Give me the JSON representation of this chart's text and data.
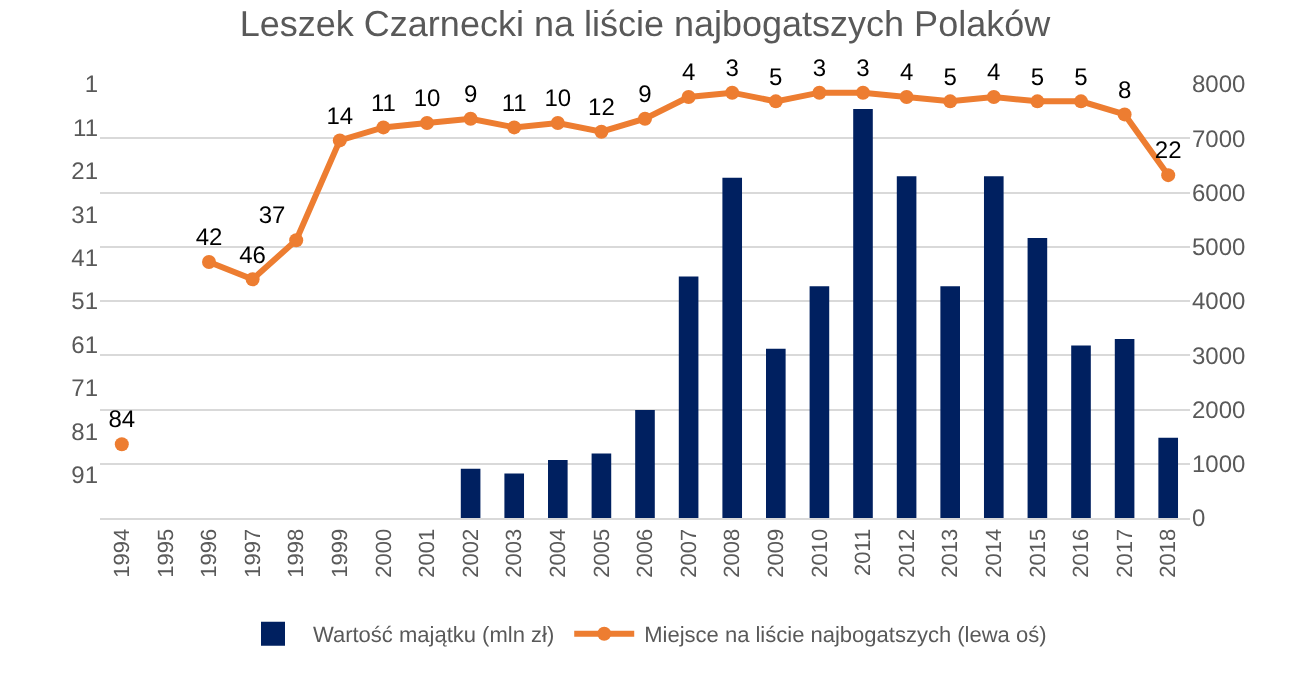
{
  "chart_data": {
    "type": "bar",
    "title": "Leszek Czarnecki na liście najbogatszych Polaków",
    "categories": [
      "1994",
      "1995",
      "1996",
      "1997",
      "1998",
      "1999",
      "2000",
      "2001",
      "2002",
      "2003",
      "2004",
      "2005",
      "2006",
      "2007",
      "2008",
      "2009",
      "2010",
      "2011",
      "2012",
      "2013",
      "2014",
      "2015",
      "2016",
      "2017",
      "2018"
    ],
    "series": [
      {
        "name": "Wartość majątku (mln zł)",
        "axis": "y2",
        "color": "#002060",
        "values": [
          null,
          null,
          null,
          null,
          null,
          null,
          null,
          null,
          910,
          820,
          1070,
          1190,
          1990,
          4450,
          6270,
          3120,
          4270,
          7540,
          6300,
          4270,
          6300,
          5160,
          3180,
          3300,
          1480
        ]
      },
      {
        "name": "Miejsce na liście najbogatszych (lewa oś)",
        "type": "line",
        "color": "#ed7d31",
        "marker": "circle",
        "values": [
          84,
          null,
          42,
          46,
          37,
          14,
          11,
          10,
          9,
          11,
          10,
          12,
          9,
          4,
          3,
          5,
          3,
          3,
          4,
          5,
          4,
          5,
          5,
          8,
          22
        ],
        "value_labels": [
          "84",
          null,
          "42",
          "46",
          "37",
          "14",
          "11",
          "10",
          "9",
          "11",
          "10",
          "12",
          "9",
          "4",
          "3",
          "5",
          "3",
          "3",
          "4",
          "5",
          "4",
          "5",
          "5",
          "8",
          "22"
        ]
      }
    ],
    "ylim": [
      101,
      1
    ],
    "yticks": [
      1,
      11,
      21,
      31,
      41,
      51,
      61,
      71,
      81,
      91
    ],
    "y2lim": [
      0,
      8000
    ],
    "y2ticks": [
      0,
      1000,
      2000,
      3000,
      4000,
      5000,
      6000,
      7000,
      8000
    ],
    "grid": true,
    "legend": "bottom"
  }
}
